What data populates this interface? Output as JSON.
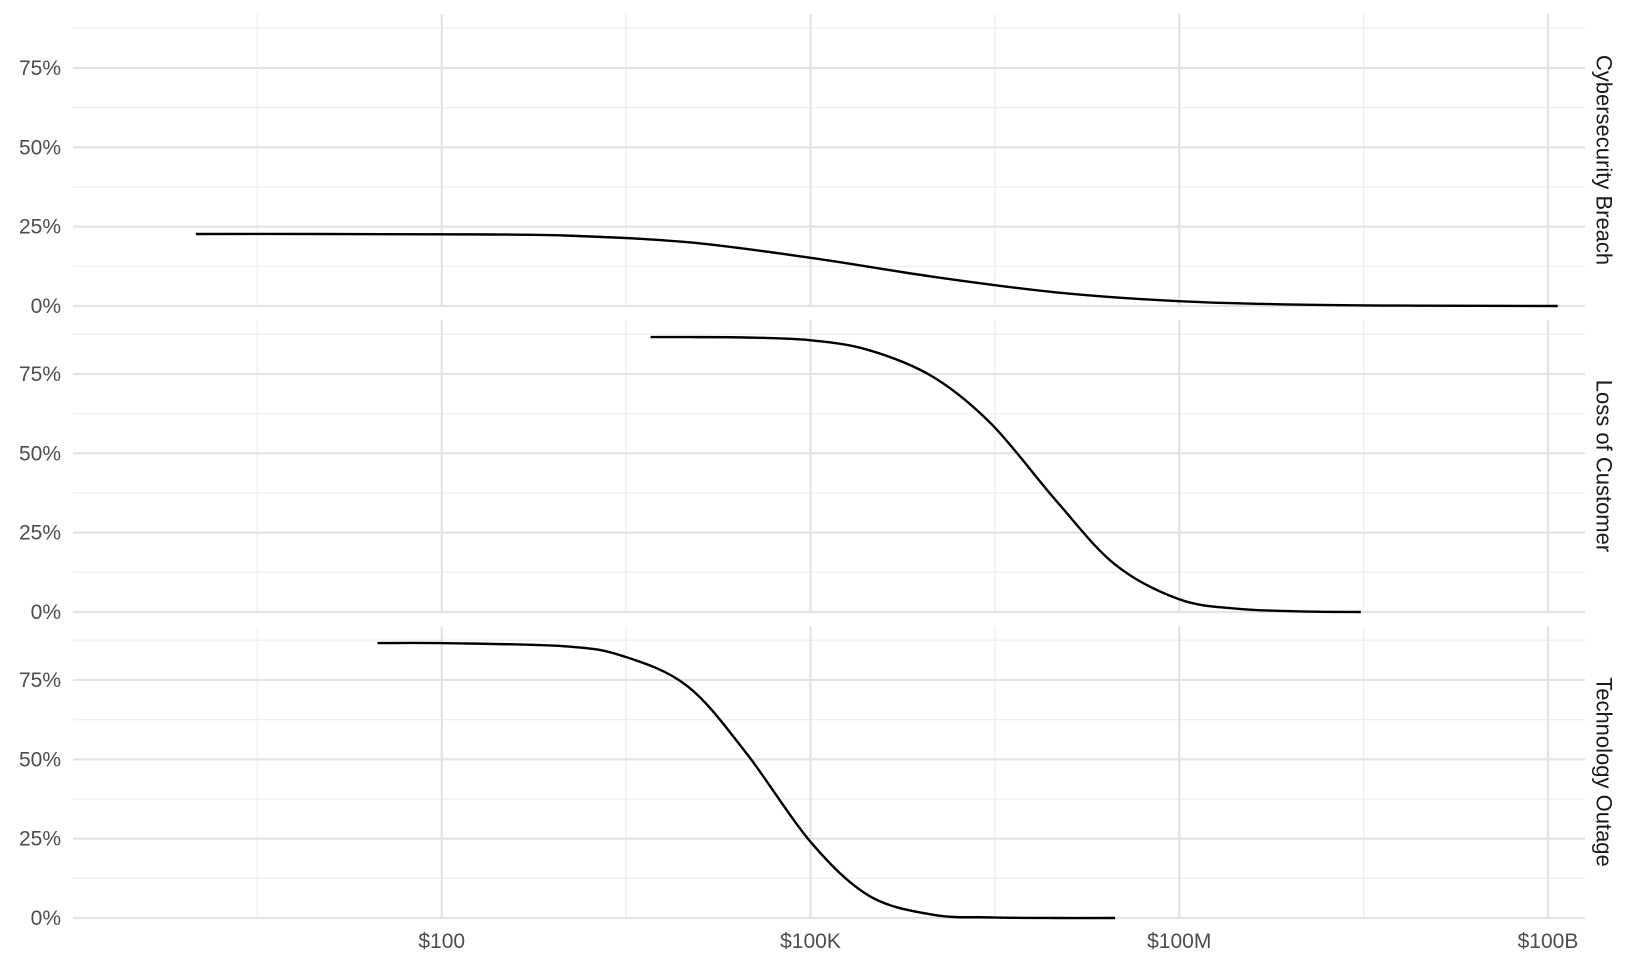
{
  "chart_data": {
    "type": "line",
    "x_scale": "log10",
    "x_lim": [
      0.1,
      200000000000
    ],
    "x_ticks": [
      {
        "value": 100,
        "label": "$100"
      },
      {
        "value": 100000,
        "label": "$100K"
      },
      {
        "value": 100000000,
        "label": "$100M"
      },
      {
        "value": 100000000000,
        "label": "$100B"
      }
    ],
    "x_minor_ticks": [
      3.16,
      3162,
      3162278,
      3162277660
    ],
    "y_lim": [
      0,
      0.92
    ],
    "y_ticks": [
      {
        "value": 0,
        "label": "0%"
      },
      {
        "value": 0.25,
        "label": "25%"
      },
      {
        "value": 0.5,
        "label": "50%"
      },
      {
        "value": 0.75,
        "label": "75%"
      }
    ],
    "y_minor_ticks": [
      0.125,
      0.375,
      0.625,
      0.875
    ],
    "grid": true,
    "legend": "none",
    "facets": [
      {
        "label": "Cybersecurity Breach",
        "x": [
          1,
          10,
          100,
          1000,
          10000,
          100000,
          1000000,
          10000000,
          100000000,
          1000000000,
          10000000000,
          120000000000
        ],
        "y": [
          0.227,
          0.227,
          0.226,
          0.222,
          0.201,
          0.152,
          0.092,
          0.043,
          0.015,
          0.004,
          0.001,
          0.0
        ]
      },
      {
        "label": "Loss of Customer",
        "x": [
          5000,
          10000,
          30000,
          100000,
          300000,
          1000000,
          3000000,
          10000000,
          30000000,
          100000000,
          300000000,
          1000000000,
          3000000000
        ],
        "y": [
          0.866,
          0.866,
          0.865,
          0.856,
          0.825,
          0.74,
          0.59,
          0.35,
          0.15,
          0.04,
          0.01,
          0.002,
          0.0
        ]
      },
      {
        "label": "Technology Outage",
        "x": [
          30,
          100,
          1000,
          3000,
          10000,
          30000,
          100000,
          300000,
          1000000,
          3000000,
          10000000,
          30000000
        ],
        "y": [
          0.866,
          0.866,
          0.856,
          0.825,
          0.73,
          0.52,
          0.24,
          0.07,
          0.01,
          0.002,
          0.0,
          0.0
        ]
      }
    ]
  }
}
